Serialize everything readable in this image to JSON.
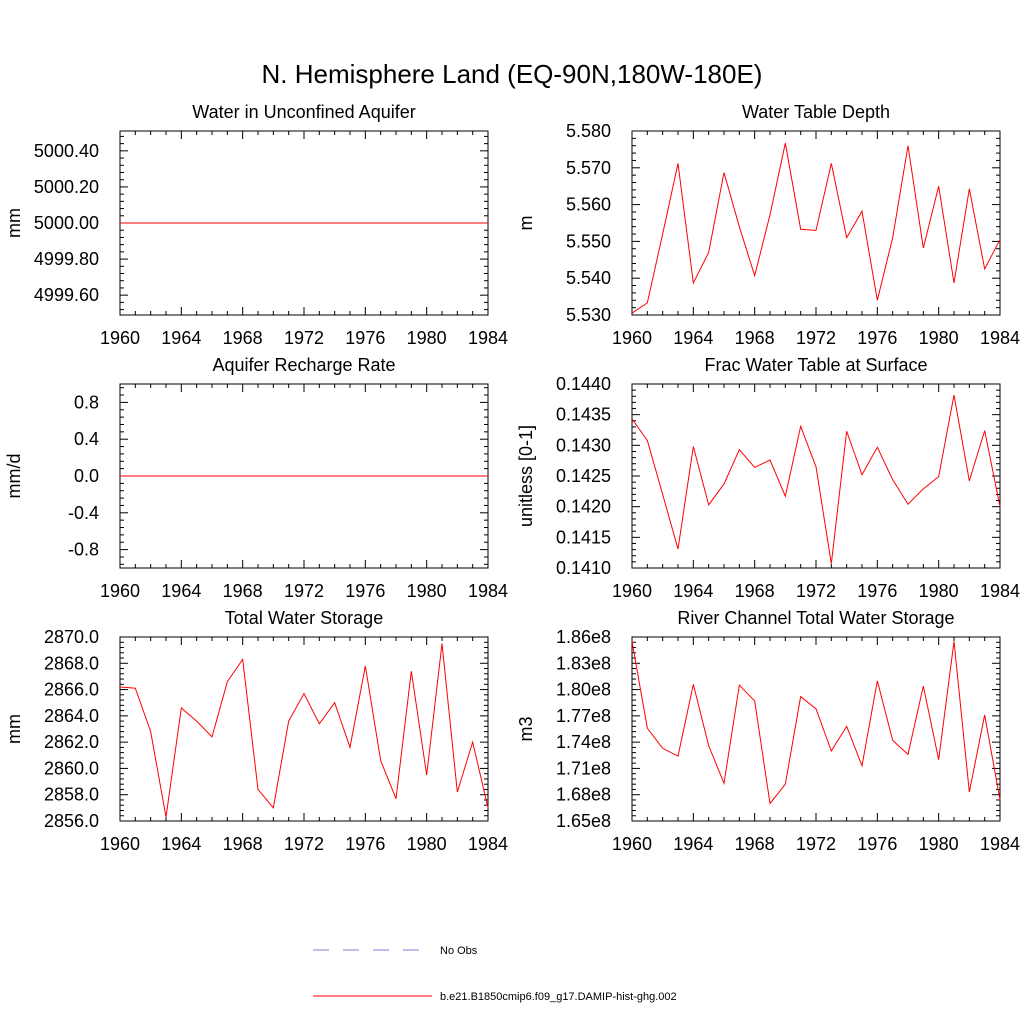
{
  "title": "N. Hemisphere Land (EQ-90N,180W-180E)",
  "legend": {
    "items": [
      {
        "label": "No Obs",
        "color": "#7f7fd8",
        "style": "dashed"
      },
      {
        "label": "b.e21.B1850cmip6.f09_g17.DAMIP-hist-ghg.002",
        "color": "#ff0000",
        "style": "solid"
      }
    ]
  },
  "chart_data": [
    {
      "type": "line",
      "title": "Water in Unconfined Aquifer",
      "ylabel": "mm",
      "xlim": [
        1960,
        1984
      ],
      "xticks": [
        "1960",
        "1964",
        "1968",
        "1972",
        "1976",
        "1980",
        "1984"
      ],
      "ylim": [
        4999.49,
        5000.51
      ],
      "yticks": [
        {
          "v": 4999.6,
          "label": "4999.60"
        },
        {
          "v": 4999.8,
          "label": "4999.80"
        },
        {
          "v": 5000.0,
          "label": "5000.00"
        },
        {
          "v": 5000.2,
          "label": "5000.20"
        },
        {
          "v": 5000.4,
          "label": "5000.40"
        }
      ],
      "series": [
        {
          "color": "#ff0000",
          "x": [
            1960,
            1984
          ],
          "y": [
            5000.0,
            5000.0
          ]
        }
      ]
    },
    {
      "type": "line",
      "title": "Water Table Depth",
      "ylabel": "m",
      "xlim": [
        1960,
        1984
      ],
      "xticks": [
        "1960",
        "1964",
        "1968",
        "1972",
        "1976",
        "1980",
        "1984"
      ],
      "ylim": [
        5.53,
        5.58
      ],
      "yticks": [
        {
          "v": 5.53,
          "label": "5.530"
        },
        {
          "v": 5.54,
          "label": "5.540"
        },
        {
          "v": 5.55,
          "label": "5.550"
        },
        {
          "v": 5.56,
          "label": "5.560"
        },
        {
          "v": 5.57,
          "label": "5.570"
        },
        {
          "v": 5.58,
          "label": "5.580"
        }
      ],
      "series": [
        {
          "color": "#ff0000",
          "x": [
            1960,
            1961,
            1962,
            1963,
            1964,
            1965,
            1966,
            1967,
            1968,
            1969,
            1970,
            1971,
            1972,
            1973,
            1974,
            1975,
            1976,
            1977,
            1978,
            1979,
            1980,
            1981,
            1982,
            1983,
            1984
          ],
          "y": [
            5.5305,
            5.5333,
            5.552,
            5.5712,
            5.5387,
            5.547,
            5.5687,
            5.554,
            5.5407,
            5.5572,
            5.5767,
            5.5533,
            5.553,
            5.5712,
            5.551,
            5.5582,
            5.534,
            5.551,
            5.576,
            5.5482,
            5.565,
            5.5387,
            5.5643,
            5.5425,
            5.5505
          ]
        }
      ]
    },
    {
      "type": "line",
      "title": "Aquifer Recharge Rate",
      "ylabel": "mm/d",
      "xlim": [
        1960,
        1984
      ],
      "xticks": [
        "1960",
        "1964",
        "1968",
        "1972",
        "1976",
        "1980",
        "1984"
      ],
      "ylim": [
        -1.0,
        1.0
      ],
      "yticks": [
        {
          "v": -0.8,
          "label": "-0.8"
        },
        {
          "v": -0.4,
          "label": "-0.4"
        },
        {
          "v": 0.0,
          "label": "0.0"
        },
        {
          "v": 0.4,
          "label": "0.4"
        },
        {
          "v": 0.8,
          "label": "0.8"
        }
      ],
      "series": [
        {
          "color": "#ff0000",
          "x": [
            1960,
            1984
          ],
          "y": [
            0.0,
            0.0
          ]
        }
      ]
    },
    {
      "type": "line",
      "title": "Frac Water Table at Surface",
      "ylabel": "unitless [0-1]",
      "xlim": [
        1960,
        1984
      ],
      "xticks": [
        "1960",
        "1964",
        "1968",
        "1972",
        "1976",
        "1980",
        "1984"
      ],
      "ylim": [
        0.141,
        0.144
      ],
      "yticks": [
        {
          "v": 0.141,
          "label": "0.1410"
        },
        {
          "v": 0.1415,
          "label": "0.1415"
        },
        {
          "v": 0.142,
          "label": "0.1420"
        },
        {
          "v": 0.1425,
          "label": "0.1425"
        },
        {
          "v": 0.143,
          "label": "0.1430"
        },
        {
          "v": 0.1435,
          "label": "0.1435"
        },
        {
          "v": 0.144,
          "label": "0.1440"
        }
      ],
      "series": [
        {
          "color": "#ff0000",
          "x": [
            1960,
            1961,
            1962,
            1963,
            1964,
            1965,
            1966,
            1967,
            1968,
            1969,
            1970,
            1971,
            1972,
            1973,
            1974,
            1975,
            1976,
            1977,
            1978,
            1979,
            1980,
            1981,
            1982,
            1983,
            1984
          ],
          "y": [
            0.14343,
            0.14308,
            0.1422,
            0.14131,
            0.14298,
            0.14203,
            0.14237,
            0.14293,
            0.14264,
            0.14276,
            0.14217,
            0.14331,
            0.14265,
            0.14107,
            0.14323,
            0.14252,
            0.14297,
            0.14244,
            0.14204,
            0.14229,
            0.14249,
            0.14382,
            0.14242,
            0.14324,
            0.142
          ]
        }
      ]
    },
    {
      "type": "line",
      "title": "Total Water Storage",
      "ylabel": "mm",
      "xlim": [
        1960,
        1984
      ],
      "xticks": [
        "1960",
        "1964",
        "1968",
        "1972",
        "1976",
        "1980",
        "1984"
      ],
      "ylim": [
        2856.0,
        2870.0
      ],
      "yticks": [
        {
          "v": 2856,
          "label": "2856.0"
        },
        {
          "v": 2858,
          "label": "2858.0"
        },
        {
          "v": 2860,
          "label": "2860.0"
        },
        {
          "v": 2862,
          "label": "2862.0"
        },
        {
          "v": 2864,
          "label": "2864.0"
        },
        {
          "v": 2866,
          "label": "2866.0"
        },
        {
          "v": 2868,
          "label": "2868.0"
        },
        {
          "v": 2870,
          "label": "2870.0"
        }
      ],
      "series": [
        {
          "color": "#ff0000",
          "x": [
            1960,
            1961,
            1962,
            1963,
            1964,
            1965,
            1966,
            1967,
            1968,
            1969,
            1970,
            1971,
            1972,
            1973,
            1974,
            1975,
            1976,
            1977,
            1978,
            1979,
            1980,
            1981,
            1982,
            1983,
            1984
          ],
          "y": [
            2866.2,
            2866.1,
            2862.8,
            2856.3,
            2864.6,
            2863.6,
            2862.4,
            2866.6,
            2868.3,
            2858.4,
            2857.0,
            2863.6,
            2865.7,
            2863.4,
            2865.0,
            2861.6,
            2867.8,
            2860.6,
            2857.7,
            2867.4,
            2859.5,
            2869.5,
            2858.2,
            2862.0,
            2857.0
          ]
        }
      ]
    },
    {
      "type": "line",
      "title": "River Channel Total Water Storage",
      "ylabel": "m3",
      "xlim": [
        1960,
        1984
      ],
      "xticks": [
        "1960",
        "1964",
        "1968",
        "1972",
        "1976",
        "1980",
        "1984"
      ],
      "ylim": [
        165000000.0,
        186000000.0
      ],
      "yticks": [
        {
          "v": 165000000.0,
          "label": "1.65e8"
        },
        {
          "v": 168000000.0,
          "label": "1.68e8"
        },
        {
          "v": 171000000.0,
          "label": "1.71e8"
        },
        {
          "v": 174000000.0,
          "label": "1.74e8"
        },
        {
          "v": 177000000.0,
          "label": "1.77e8"
        },
        {
          "v": 180000000.0,
          "label": "1.80e8"
        },
        {
          "v": 183000000.0,
          "label": "1.83e8"
        },
        {
          "v": 186000000.0,
          "label": "1.86e8"
        }
      ],
      "series": [
        {
          "color": "#ff0000",
          "x": [
            1960,
            1961,
            1962,
            1963,
            1964,
            1965,
            1966,
            1967,
            1968,
            1969,
            1970,
            1971,
            1972,
            1973,
            1974,
            1975,
            1976,
            1977,
            1978,
            1979,
            1980,
            1981,
            1982,
            1983,
            1984
          ],
          "y": [
            185500000.0,
            175600000.0,
            173300000.0,
            172400000.0,
            180600000.0,
            173600000.0,
            169300000.0,
            180500000.0,
            178700000.0,
            167000000.0,
            169200000.0,
            179200000.0,
            177800000.0,
            173000000.0,
            175800000.0,
            171300000.0,
            181000000.0,
            174200000.0,
            172600000.0,
            180400000.0,
            172000000.0,
            185500000.0,
            168300000.0,
            177100000.0,
            167400000.0
          ]
        }
      ]
    }
  ]
}
